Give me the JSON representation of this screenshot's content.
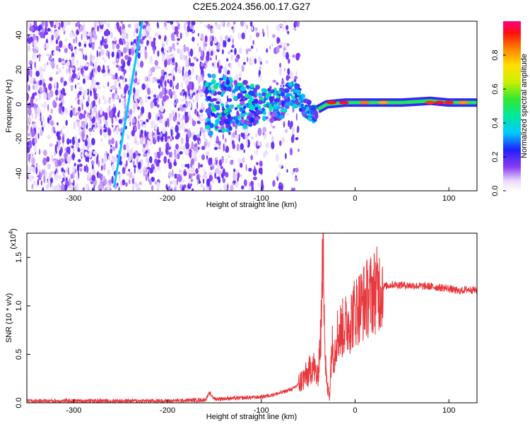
{
  "title": "C2E5.2024.356.00.17.G27",
  "chart_data": [
    {
      "type": "heatmap",
      "xlabel": "Height of straight line (km)",
      "ylabel": "Frequency (Hz)",
      "xlim": [
        -350,
        130
      ],
      "ylim": [
        -50,
        48
      ],
      "xticks": [
        -300,
        -200,
        -100,
        0,
        100
      ],
      "yticks": [
        -40,
        -20,
        0,
        20,
        40
      ],
      "colorbar": {
        "label": "Normalized spectral amplitude",
        "range": [
          0,
          1
        ],
        "ticks": [
          0.0,
          0.2,
          0.4,
          0.6,
          0.8
        ]
      },
      "features": {
        "diagonal_line": {
          "from": [
            -257,
            -48
          ],
          "to": [
            -227,
            48
          ],
          "amplitude": 0.35
        },
        "carrier_track": [
          {
            "x": -40,
            "y": -3
          },
          {
            "x": -30,
            "y": 0
          },
          {
            "x": -10,
            "y": 1
          },
          {
            "x": 10,
            "y": 1
          },
          {
            "x": 50,
            "y": 1
          },
          {
            "x": 80,
            "y": 2
          },
          {
            "x": 100,
            "y": 1
          },
          {
            "x": 130,
            "y": 1
          }
        ],
        "noise_region_x": [
          -350,
          -110
        ],
        "scatter_cluster_x": [
          -160,
          -40
        ]
      }
    },
    {
      "type": "line",
      "xlabel": "Height of straight line (km)",
      "ylabel": "SNR (10 * v/v)",
      "y_multiplier": "(x10",
      "y_multiplier_exp": "4",
      "xlim": [
        -350,
        130
      ],
      "ylim": [
        0,
        1.75
      ],
      "xticks": [
        -300,
        -200,
        -100,
        0,
        100
      ],
      "yticks": [
        0.0,
        0.5,
        1.0,
        1.5
      ],
      "color": "#e8383d",
      "series": [
        {
          "x": [
            -350,
            -300,
            -250,
            -200,
            -160,
            -155,
            -150,
            -120,
            -100,
            -80,
            -65,
            -55,
            -50,
            -45,
            -40,
            -36,
            -34,
            -32,
            -30,
            -27,
            -25,
            -22,
            -20,
            -15,
            -10,
            -5,
            0,
            10,
            20,
            30,
            40,
            60,
            80,
            100,
            110,
            120,
            130
          ],
          "y": [
            0.02,
            0.02,
            0.02,
            0.02,
            0.03,
            0.1,
            0.04,
            0.05,
            0.06,
            0.1,
            0.15,
            0.25,
            0.3,
            0.4,
            0.25,
            0.8,
            1.75,
            0.5,
            0.15,
            0.1,
            0.6,
            0.5,
            0.7,
            0.75,
            0.8,
            0.85,
            0.95,
            1.05,
            1.15,
            1.2,
            1.22,
            1.21,
            1.2,
            1.18,
            1.15,
            1.17,
            1.16
          ]
        }
      ]
    }
  ]
}
